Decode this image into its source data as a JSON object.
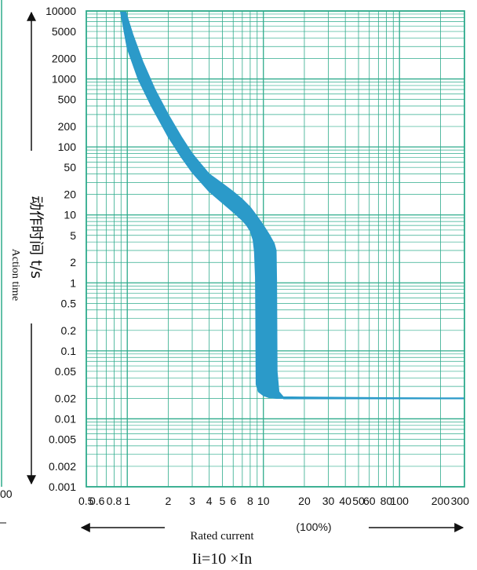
{
  "chart_data": {
    "type": "area",
    "title": "",
    "xlabel": "Rated current",
    "xlabel_unit": "(100%)",
    "ylabel_cn": "动作时间 t/s",
    "ylabel_en": "Action time",
    "formula": "Ii=10 ×In",
    "x_scale": "log",
    "y_scale": "log",
    "xlim": [
      0.5,
      300
    ],
    "ylim": [
      0.001,
      10000
    ],
    "grid": true,
    "x_ticks": [
      0.5,
      0.6,
      0.8,
      1,
      2,
      3,
      4,
      5,
      6,
      8,
      10,
      20,
      30,
      40,
      50,
      60,
      80,
      100,
      200,
      300
    ],
    "x_tick_labels": [
      "0.5",
      "0.6",
      "0.8",
      "1",
      "2",
      "3",
      "4",
      "5",
      "6",
      "8",
      "10",
      "20",
      "30",
      "40",
      "50",
      "60",
      "80",
      "100",
      "200",
      "300"
    ],
    "y_ticks": [
      10000,
      5000,
      2000,
      1000,
      500,
      200,
      100,
      50,
      20,
      10,
      5,
      2,
      1,
      0.5,
      0.2,
      0.1,
      0.05,
      0.02,
      0.01,
      0.005,
      0.002,
      0.001
    ],
    "y_tick_labels": [
      "10000",
      "5000",
      "2000",
      "1000",
      "500",
      "200",
      "100",
      "50",
      "20",
      "10",
      "5",
      "2",
      "1",
      "0.5",
      "0.2",
      "0.1",
      "0.05",
      "0.02",
      "0.01",
      "0.005",
      "0.002",
      "0.001"
    ],
    "band_lower": {
      "x": [
        0.89,
        1,
        1.2,
        1.5,
        2,
        2.5,
        3,
        4,
        5,
        6,
        7,
        7.5,
        8,
        8.4,
        8.6,
        8.75,
        8.8,
        8.82,
        8.85,
        9.2,
        10,
        11,
        12.5,
        14,
        300
      ],
      "y": [
        10000,
        2800,
        1000,
        400,
        140,
        70,
        42,
        22,
        15,
        11,
        8.3,
        7.1,
        5.8,
        4.3,
        2.9,
        1.2,
        0.3,
        0.1,
        0.032,
        0.025,
        0.022,
        0.0205,
        0.02,
        0.02,
        0.02
      ]
    },
    "band_upper": {
      "x": [
        0.97,
        1.1,
        1.3,
        1.6,
        2,
        2.5,
        3,
        3.5,
        4,
        5,
        6,
        7,
        8,
        9,
        10,
        11,
        12,
        12.4,
        12.5,
        12.6,
        13,
        14,
        300
      ],
      "y": [
        10000,
        4500,
        1800,
        700,
        300,
        140,
        80,
        55,
        40,
        29,
        22,
        17,
        13,
        9.5,
        7,
        5.2,
        3.8,
        3,
        1,
        0.05,
        0.025,
        0.021,
        0.02
      ]
    },
    "colors": {
      "grid": "#2eab8c",
      "band": "#2b9ac9",
      "text": "#111111"
    }
  }
}
